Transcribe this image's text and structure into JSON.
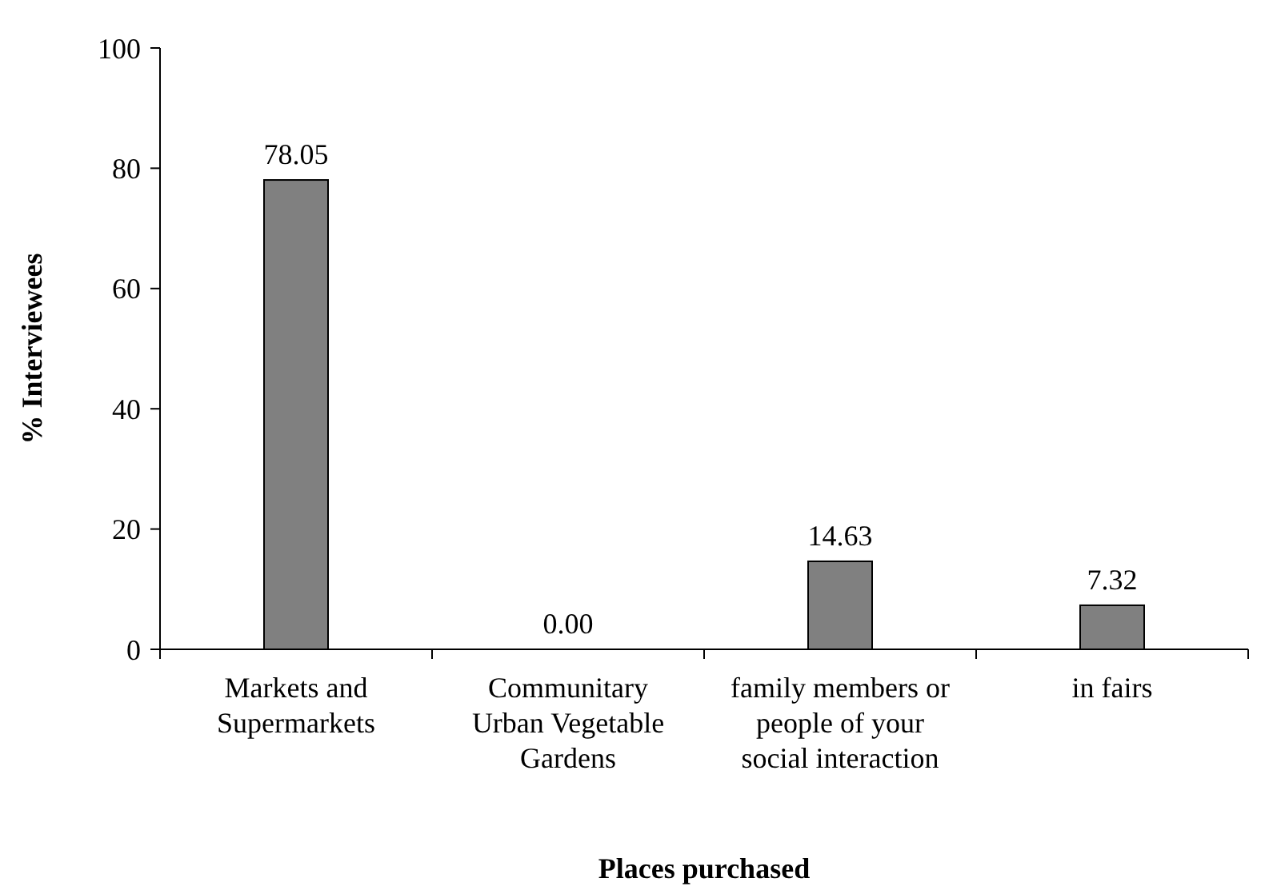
{
  "chart_data": {
    "type": "bar",
    "xlabel": "Places purchased",
    "ylabel": "% Interviewees",
    "categories": [
      "Markets and Supermarkets",
      "Communitary Urban Vegetable Gardens",
      "family members or people of your social interaction",
      "in fairs"
    ],
    "values": [
      78.05,
      0,
      14.63,
      7.32
    ],
    "value_labels": [
      "78.05",
      "0.00",
      "14.63",
      "7.32"
    ],
    "color": "#808080",
    "ylim": [
      0,
      100
    ],
    "yticks": [
      0,
      20,
      40,
      60,
      80,
      100
    ],
    "grid": false
  }
}
